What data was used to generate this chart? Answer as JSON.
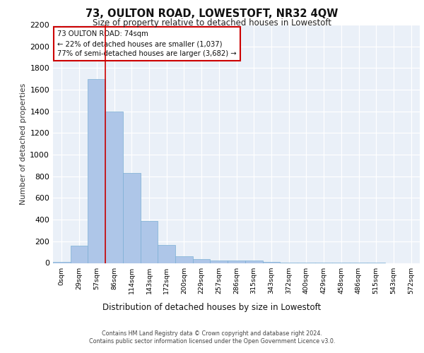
{
  "title": "73, OULTON ROAD, LOWESTOFT, NR32 4QW",
  "subtitle": "Size of property relative to detached houses in Lowestoft",
  "xlabel": "Distribution of detached houses by size in Lowestoft",
  "ylabel": "Number of detached properties",
  "bin_labels": [
    "0sqm",
    "29sqm",
    "57sqm",
    "86sqm",
    "114sqm",
    "143sqm",
    "172sqm",
    "200sqm",
    "229sqm",
    "257sqm",
    "286sqm",
    "315sqm",
    "343sqm",
    "372sqm",
    "400sqm",
    "429sqm",
    "458sqm",
    "486sqm",
    "515sqm",
    "543sqm",
    "572sqm"
  ],
  "bar_values": [
    10,
    160,
    1700,
    1400,
    830,
    390,
    165,
    60,
    35,
    20,
    20,
    20,
    10,
    5,
    2,
    2,
    2,
    1,
    1,
    0,
    0
  ],
  "bar_color": "#aec6e8",
  "bar_edge_color": "#7bafd4",
  "vline_color": "#cc0000",
  "vline_bin_index": 2.5,
  "annotation_text": "73 OULTON ROAD: 74sqm\n← 22% of detached houses are smaller (1,037)\n77% of semi-detached houses are larger (3,682) →",
  "annotation_box_color": "#ffffff",
  "annotation_box_edge_color": "#cc0000",
  "ylim": [
    0,
    2200
  ],
  "yticks": [
    0,
    200,
    400,
    600,
    800,
    1000,
    1200,
    1400,
    1600,
    1800,
    2000,
    2200
  ],
  "bg_color": "#eaf0f8",
  "footer_line1": "Contains HM Land Registry data © Crown copyright and database right 2024.",
  "footer_line2": "Contains public sector information licensed under the Open Government Licence v3.0."
}
